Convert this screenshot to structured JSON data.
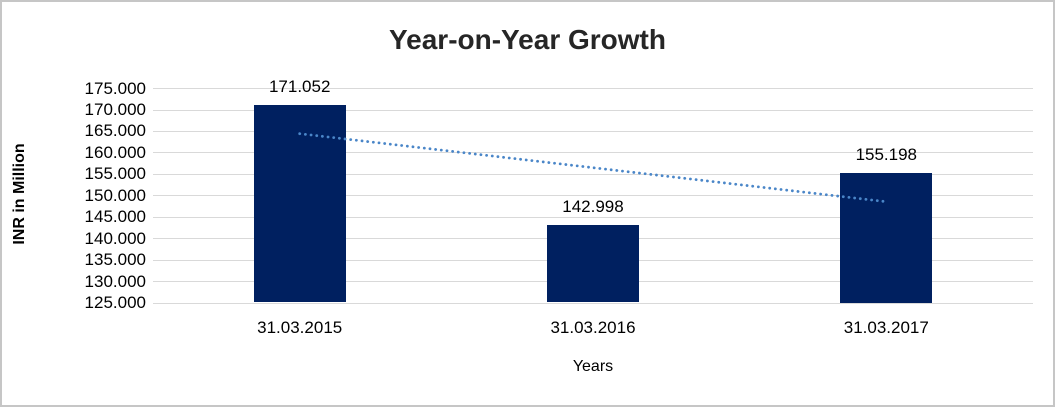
{
  "chart": {
    "title": "Year-on-Year Growth",
    "y_axis_title": "INR in Million",
    "x_axis_title": "Years",
    "colors": {
      "bar_fill": "#002060",
      "trendline": "#4a86c8",
      "gridline": "#d9d9d9",
      "title_text": "#262626",
      "axis_text": "#000000",
      "frame_border": "#c6c6c6"
    }
  },
  "chart_data": {
    "type": "bar",
    "title": "Year-on-Year Growth",
    "xlabel": "Years",
    "ylabel": "INR in Million",
    "categories": [
      "31.03.2015",
      "31.03.2016",
      "31.03.2017"
    ],
    "values": [
      171.052,
      142.998,
      155.198
    ],
    "data_labels": [
      "171.052",
      "142.998",
      "155.198"
    ],
    "ylim": [
      125,
      175
    ],
    "yticks": [
      175,
      170,
      165,
      160,
      155,
      150,
      145,
      140,
      135,
      130,
      125
    ],
    "ytick_labels": [
      "175.000",
      "170.000",
      "165.000",
      "160.000",
      "155.000",
      "150.000",
      "145.000",
      "140.000",
      "135.000",
      "130.000",
      "125.000"
    ],
    "grid": true,
    "legend": "none",
    "trendline": {
      "style": "dotted",
      "type": "linear",
      "start_value": 164.343,
      "end_value": 148.489,
      "start_category_index": 0,
      "end_category_index": 2
    }
  }
}
